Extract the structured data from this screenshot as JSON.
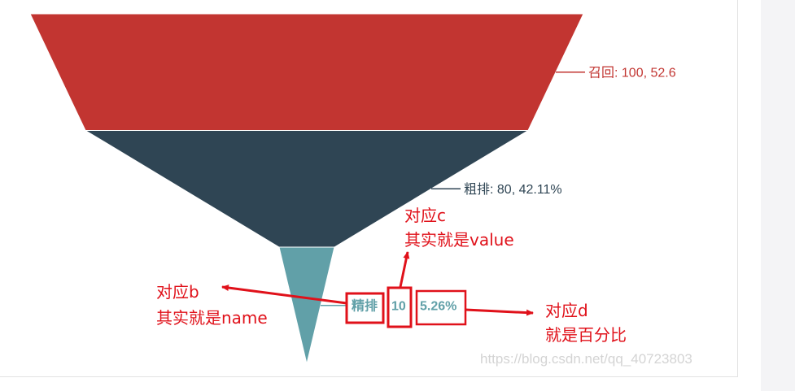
{
  "chart_data": {
    "type": "funnel",
    "sort": "descending",
    "max": 100,
    "series": [
      {
        "name": "召回",
        "value": 100,
        "percent": "52.6",
        "color": "#c23531",
        "label": "召回: 100, 52.6"
      },
      {
        "name": "粗排",
        "value": 80,
        "percent": "42.11%",
        "color": "#2f4554",
        "label": "粗排: 80, 42.11%"
      },
      {
        "name": "精排",
        "value": 10,
        "percent": "5.26%",
        "color": "#61a0a8",
        "label_b": "精排",
        "label_c": "10",
        "label_d": "5.26%"
      }
    ]
  },
  "annotations": {
    "b": {
      "line1": "对应b",
      "line2": "其实就是name"
    },
    "c": {
      "line1": "对应c",
      "line2": "其实就是value"
    },
    "d": {
      "line1": "对应d",
      "line2": "就是百分比"
    },
    "color": "#e0111a"
  },
  "watermark": "https://blog.csdn.net/qq_40723803"
}
